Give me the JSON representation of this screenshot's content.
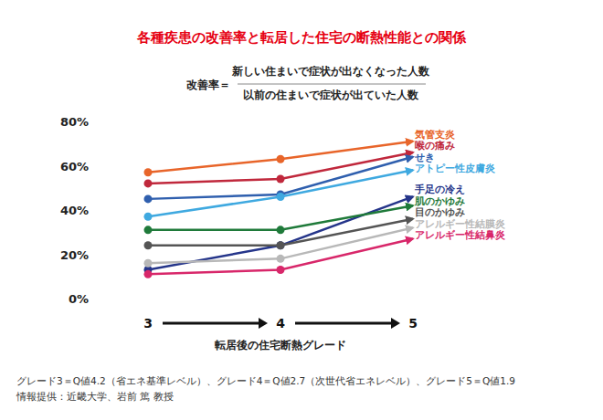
{
  "chart_data": {
    "type": "line",
    "title": "各種疾患の改善率と転居した住宅の断熱性能との関係",
    "formula": {
      "lhs": "改善率＝",
      "numerator": "新しい住まいで症状が出なくなった人数",
      "denominator": "以前の住まいで症状が出ていた人数"
    },
    "x_label": "転居後の住宅断熱グレード",
    "categories": [
      "3",
      "4",
      "5"
    ],
    "ylim": [
      0,
      80
    ],
    "yticks": [
      {
        "value": 0,
        "label": "0%"
      },
      {
        "value": 20,
        "label": "20%"
      },
      {
        "value": 40,
        "label": "40%"
      },
      {
        "value": 60,
        "label": "60%"
      },
      {
        "value": 80,
        "label": "80%"
      }
    ],
    "grid": false,
    "marker": "circle",
    "series": [
      {
        "name": "気管支炎",
        "color": "#e8652a",
        "values": [
          57,
          63,
          71
        ]
      },
      {
        "name": "喉の痛み",
        "color": "#c0283c",
        "values": [
          52,
          54,
          66
        ]
      },
      {
        "name": "せき",
        "color": "#2f5fae",
        "values": [
          45,
          47,
          64
        ]
      },
      {
        "name": "アトピー性皮膚炎",
        "color": "#3fa9e0",
        "values": [
          37,
          46,
          58
        ]
      },
      {
        "name": "手足の冷え",
        "color": "#25358a",
        "values": [
          13,
          24,
          46
        ]
      },
      {
        "name": "肌のかゆみ",
        "color": "#1f7a3a",
        "values": [
          31,
          31,
          42
        ]
      },
      {
        "name": "目のかゆみ",
        "color": "#555555",
        "values": [
          24,
          24,
          36
        ]
      },
      {
        "name": "アレルギー性結膜炎",
        "color": "#b8b8b8",
        "values": [
          16,
          18,
          32
        ]
      },
      {
        "name": "アレルギー性結鼻炎",
        "color": "#d8276a",
        "values": [
          11,
          13,
          27
        ]
      }
    ],
    "notes": [
      "グレード3＝Q値4.2（省エネ基準レベル）、グレード4＝Q値2.7（次世代省エネレベル）、グレード5＝Q値1.9",
      "情報提供：近畿大学、岩前 篤 教授"
    ]
  }
}
